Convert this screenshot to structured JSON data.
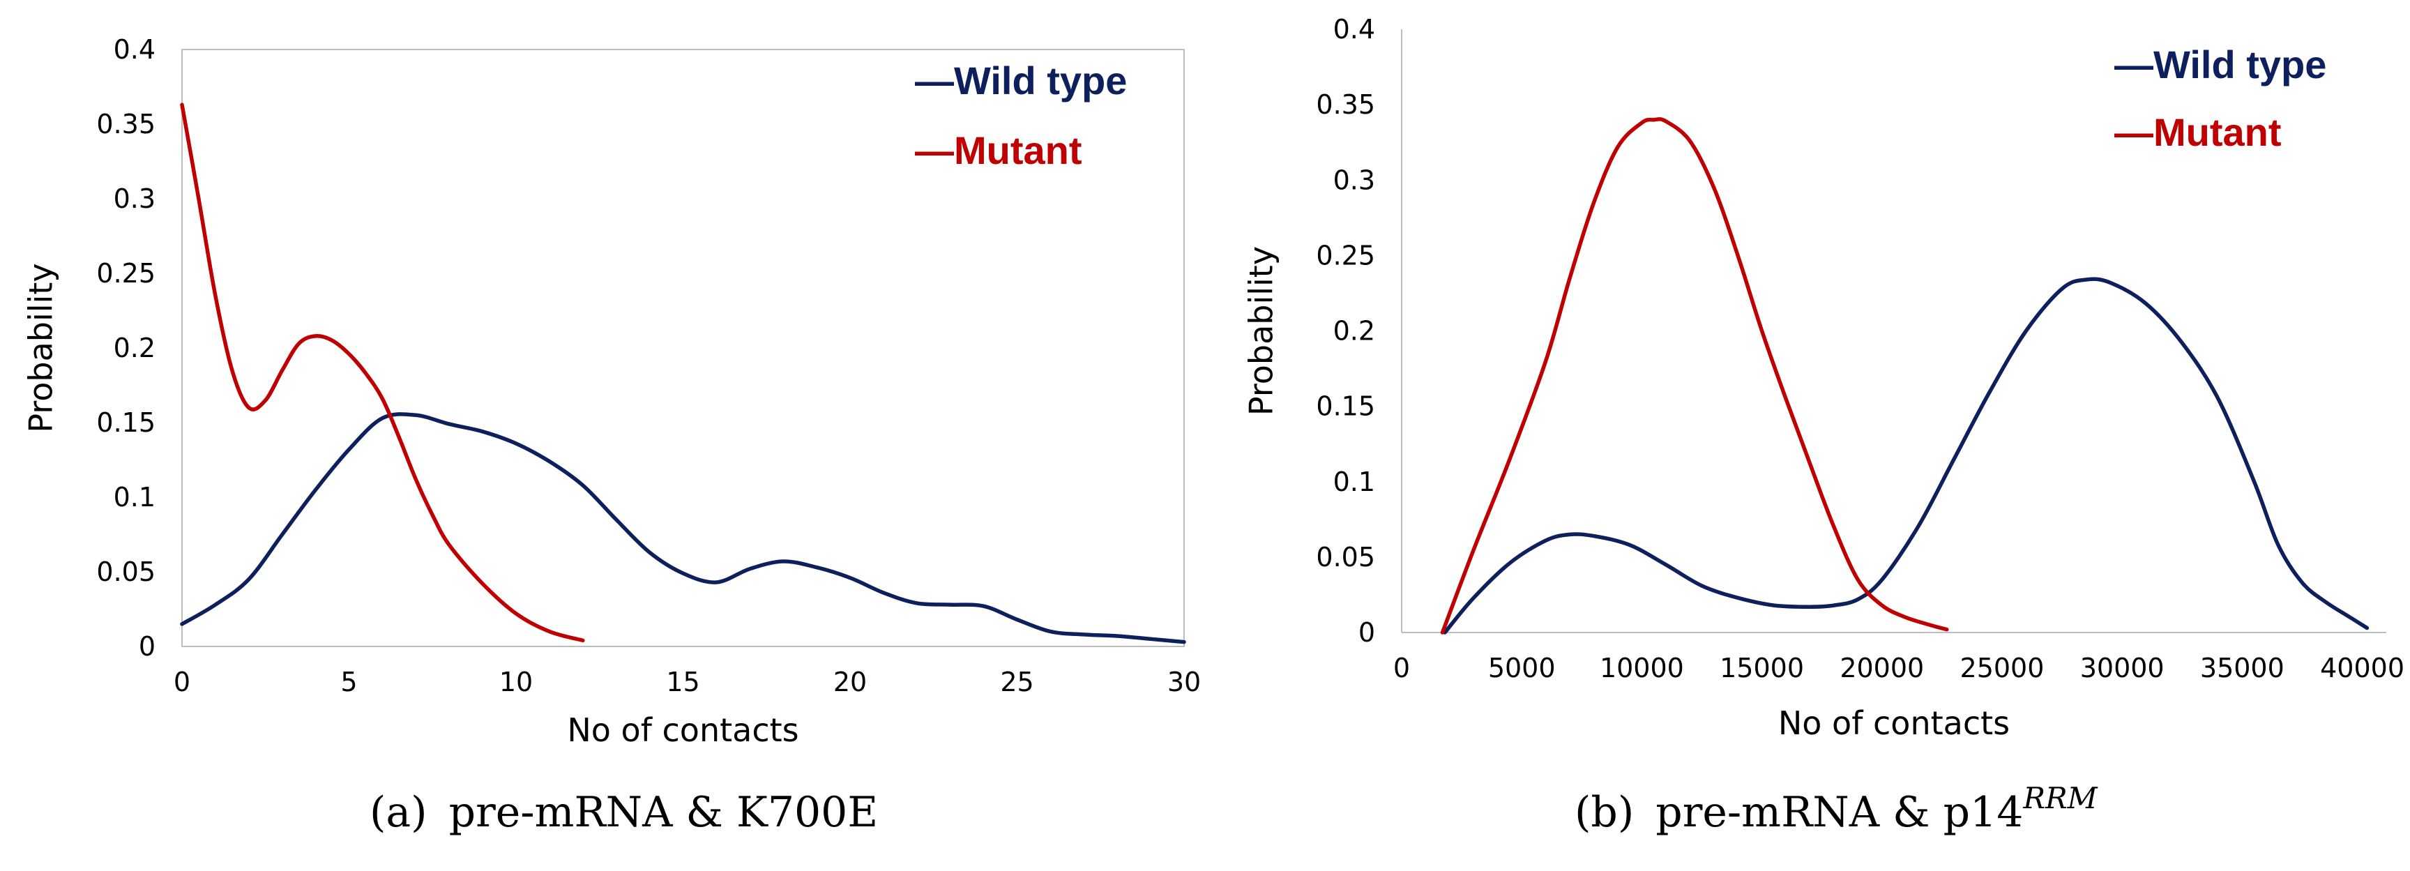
{
  "chart_data": [
    {
      "type": "line",
      "xlabel": "No of contacts",
      "ylabel": "Probability",
      "xlim": [
        0,
        30
      ],
      "ylim": [
        0,
        0.4
      ],
      "xticks": [
        0,
        5,
        10,
        15,
        20,
        25,
        30
      ],
      "xtick_labels": [
        "0",
        "5",
        "10",
        "15",
        "20",
        "25",
        "30"
      ],
      "yticks": [
        0,
        0.05,
        0.1,
        0.15,
        0.2,
        0.25,
        0.3,
        0.35,
        0.4
      ],
      "ytick_labels": [
        "0",
        "0.05",
        "0.1",
        "0.15",
        "0.2",
        "0.25",
        "0.3",
        "0.35",
        "0.4"
      ],
      "grid": false,
      "legend_position": "top-right",
      "caption": {
        "label": "(a)",
        "text": "pre-mRNA & K700E",
        "sup": ""
      },
      "series": [
        {
          "name": "Wild type",
          "legend_label": "—Wild type",
          "color": "#0d1f5c",
          "x": [
            0,
            1,
            2,
            3,
            4,
            5,
            6,
            7,
            8,
            9,
            10,
            11,
            12,
            13,
            14,
            15,
            16,
            17,
            18,
            19,
            20,
            21,
            22,
            23,
            24,
            25,
            26,
            27,
            28,
            29,
            30
          ],
          "y": [
            0.015,
            0.028,
            0.045,
            0.075,
            0.105,
            0.132,
            0.153,
            0.155,
            0.149,
            0.144,
            0.136,
            0.124,
            0.108,
            0.085,
            0.063,
            0.049,
            0.043,
            0.052,
            0.057,
            0.053,
            0.046,
            0.036,
            0.029,
            0.028,
            0.027,
            0.018,
            0.01,
            0.008,
            0.007,
            0.005,
            0.003
          ]
        },
        {
          "name": "Mutant",
          "legend_label": "—Mutant",
          "color": "#c00000",
          "x": [
            0,
            0.5,
            1,
            1.5,
            2,
            2.5,
            3,
            3.5,
            4,
            4.5,
            5,
            5.5,
            6,
            6.5,
            7,
            7.5,
            8,
            9,
            10,
            11,
            12
          ],
          "y": [
            0.363,
            0.3,
            0.235,
            0.185,
            0.16,
            0.165,
            0.185,
            0.203,
            0.208,
            0.205,
            0.196,
            0.183,
            0.166,
            0.14,
            0.112,
            0.088,
            0.068,
            0.042,
            0.022,
            0.01,
            0.004
          ]
        }
      ]
    },
    {
      "type": "line",
      "xlabel": "No of contacts",
      "ylabel": "Probability",
      "xlim": [
        0,
        41000
      ],
      "ylim": [
        0,
        0.4
      ],
      "xticks": [
        0,
        5000,
        10000,
        15000,
        20000,
        25000,
        30000,
        35000,
        40000
      ],
      "xtick_labels": [
        "0",
        "5000",
        "10000",
        "15000",
        "20000",
        "25000",
        "30000",
        "35000",
        "40000"
      ],
      "yticks": [
        0,
        0.05,
        0.1,
        0.15,
        0.2,
        0.25,
        0.3,
        0.35,
        0.4
      ],
      "ytick_labels": [
        "0",
        "0.05",
        "0.1",
        "0.15",
        "0.2",
        "0.25",
        "0.3",
        "0.35",
        "0.4"
      ],
      "grid": false,
      "legend_position": "top-right",
      "caption": {
        "label": "(b)",
        "text": "pre-mRNA & p14",
        "sup": "RRM"
      },
      "series": [
        {
          "name": "Wild type",
          "legend_label": "—Wild type",
          "color": "#0d1f5c",
          "x": [
            1800,
            3000,
            4500,
            6000,
            7000,
            8000,
            9500,
            11000,
            12500,
            14000,
            15500,
            17000,
            18000,
            19000,
            20000,
            21500,
            23000,
            24500,
            26000,
            27500,
            28500,
            29500,
            31000,
            32500,
            34000,
            35500,
            36500,
            37500,
            38500,
            39500,
            40200
          ],
          "y": [
            0,
            0.023,
            0.046,
            0.061,
            0.065,
            0.064,
            0.058,
            0.045,
            0.031,
            0.023,
            0.018,
            0.017,
            0.018,
            0.022,
            0.035,
            0.07,
            0.115,
            0.16,
            0.2,
            0.228,
            0.234,
            0.232,
            0.218,
            0.192,
            0.155,
            0.1,
            0.058,
            0.033,
            0.02,
            0.01,
            0.003
          ]
        },
        {
          "name": "Mutant",
          "legend_label": "—Mutant",
          "color": "#c00000",
          "x": [
            1700,
            3000,
            4500,
            6000,
            7000,
            8000,
            9000,
            10000,
            10500,
            11000,
            12000,
            13000,
            14000,
            15000,
            16000,
            17000,
            18000,
            19000,
            20000,
            21000,
            22000,
            22700
          ],
          "y": [
            0,
            0.055,
            0.115,
            0.18,
            0.235,
            0.285,
            0.322,
            0.338,
            0.34,
            0.339,
            0.326,
            0.295,
            0.25,
            0.2,
            0.155,
            0.112,
            0.07,
            0.035,
            0.018,
            0.01,
            0.005,
            0.002
          ]
        }
      ]
    }
  ]
}
